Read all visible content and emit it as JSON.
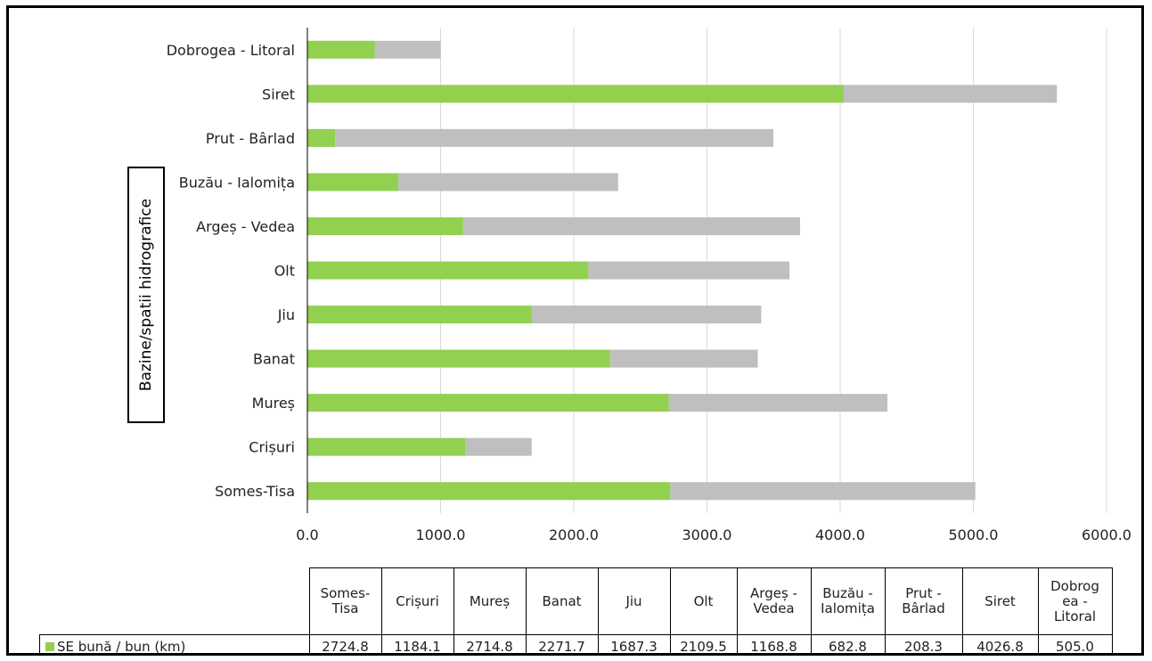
{
  "chart_data": {
    "type": "bar",
    "orientation": "horizontal",
    "stacked": true,
    "ylabel": "Bazine/spatii hidrografice",
    "categories": [
      "Somes-Tisa",
      "Crișuri",
      "Mureș",
      "Banat",
      "Jiu",
      "Olt",
      "Argeș - Vedea",
      "Buzău - Ialomița",
      "Prut - Bârlad",
      "Siret",
      "Dobrogea - Litoral"
    ],
    "table_headers": [
      "Somes-\nTisa",
      "Crișuri",
      "Mureș",
      "Banat",
      "Jiu",
      "Olt",
      "Argeș -\nVedea",
      "Buzău -\nIalomița",
      "Prut -\nBârlad",
      "Siret",
      "Dobrog\nea -\nLitoral"
    ],
    "series": [
      {
        "name": "SE bună / bun (km)",
        "color": "#92d050",
        "values": [
          2724.8,
          1184.1,
          2714.8,
          2271.7,
          1687.3,
          2109.5,
          1168.8,
          682.8,
          208.3,
          4026.8,
          505.0
        ]
      },
      {
        "color": "#bfbfbf",
        "values": [
          2290,
          500,
          1640,
          1110,
          1720,
          1510,
          2530,
          1650,
          3290,
          1600,
          495
        ]
      }
    ],
    "xlim": [
      0,
      6000
    ],
    "xticks": [
      "0.0",
      "1000.0",
      "2000.0",
      "3000.0",
      "4000.0",
      "5000.0",
      "6000.0"
    ],
    "grid": true,
    "legend": "data-table"
  }
}
